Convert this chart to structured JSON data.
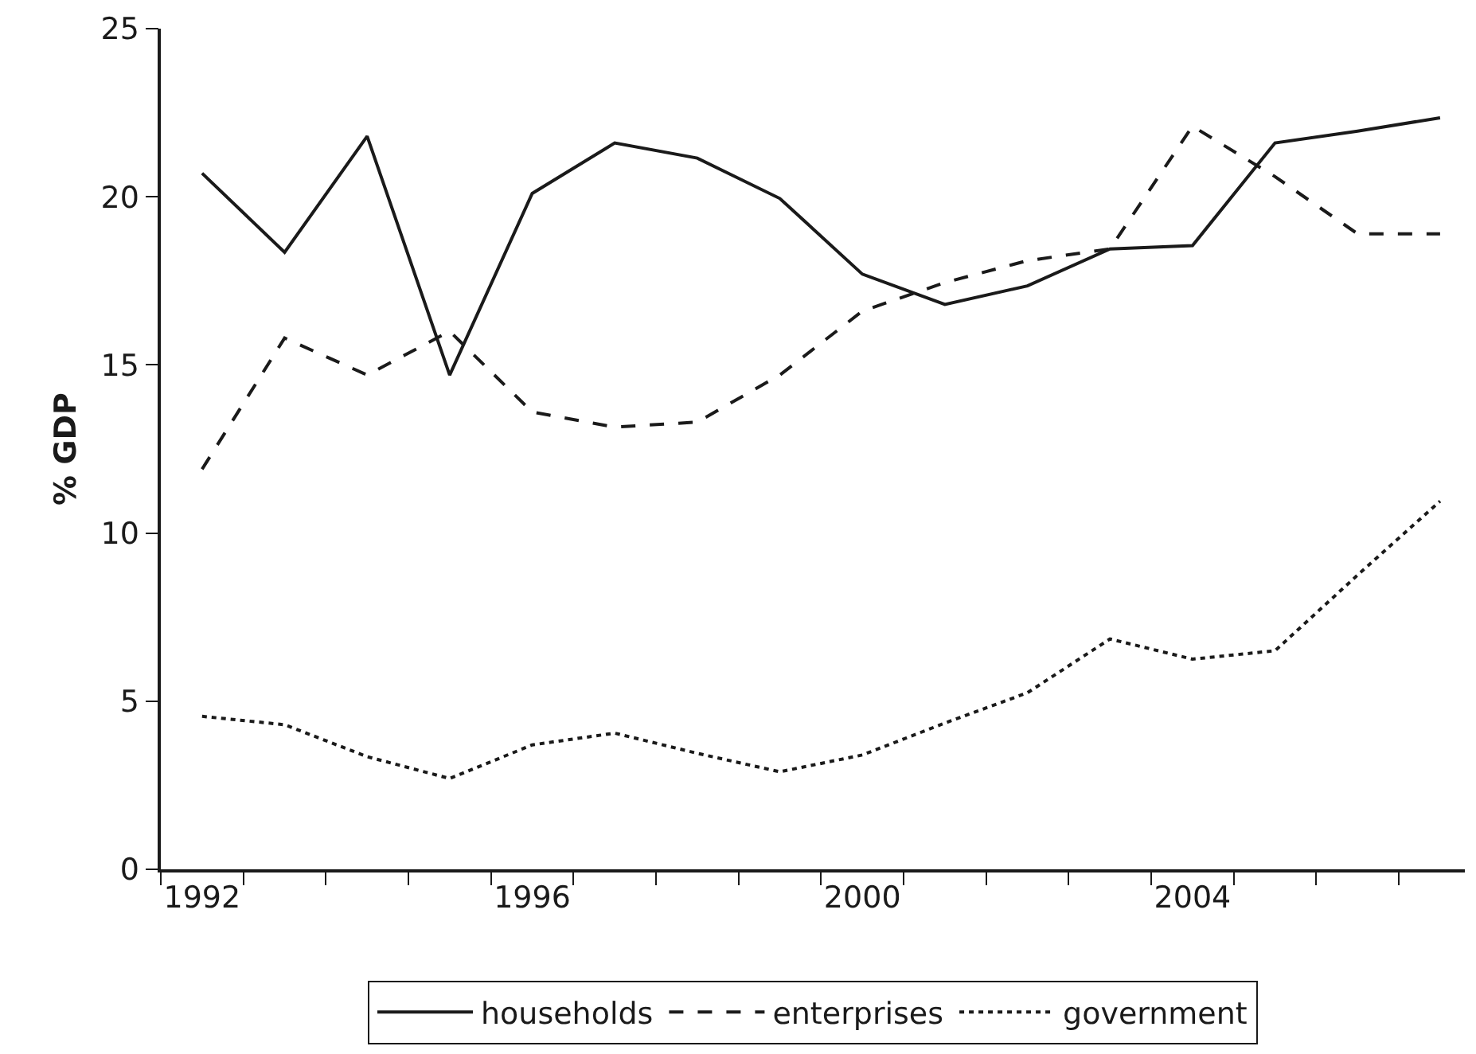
{
  "chart_data": {
    "type": "line",
    "ylabel": "% GDP",
    "x": [
      1992,
      1993,
      1994,
      1995,
      1996,
      1997,
      1998,
      1999,
      2000,
      2001,
      2002,
      2003,
      2004,
      2005,
      2006,
      2007
    ],
    "series": [
      {
        "name": "households",
        "color": "#1a1a1a",
        "line_style": "solid",
        "values": [
          20.7,
          18.35,
          21.8,
          14.7,
          20.1,
          21.6,
          21.15,
          19.95,
          17.7,
          16.8,
          17.35,
          18.45,
          18.55,
          21.6,
          21.95,
          22.35
        ]
      },
      {
        "name": "enterprises",
        "color": "#1a1a1a",
        "line_style": "dashed",
        "values": [
          11.9,
          15.8,
          14.7,
          16.0,
          13.6,
          13.15,
          13.3,
          14.7,
          16.6,
          17.45,
          18.1,
          18.45,
          22.1,
          20.6,
          18.9,
          18.9
        ]
      },
      {
        "name": "government",
        "color": "#1a1a1a",
        "line_style": "dotted",
        "values": [
          4.55,
          4.3,
          3.35,
          2.7,
          3.7,
          4.05,
          3.45,
          2.9,
          3.4,
          4.35,
          5.25,
          6.85,
          6.25,
          6.5,
          8.75,
          10.95
        ]
      }
    ],
    "xlim": [
      1991.5,
      2007.3
    ],
    "xticks": [
      {
        "value": 1991.5,
        "label": null
      },
      {
        "value": 1992.5,
        "label": null
      },
      {
        "value": 1993.5,
        "label": null
      },
      {
        "value": 1994.5,
        "label": null
      },
      {
        "value": 1995.5,
        "label": null
      },
      {
        "value": 1996.5,
        "label": null
      },
      {
        "value": 1997.5,
        "label": null
      },
      {
        "value": 1998.5,
        "label": null
      },
      {
        "value": 1999.5,
        "label": null
      },
      {
        "value": 2000.5,
        "label": null
      },
      {
        "value": 2001.5,
        "label": null
      },
      {
        "value": 2002.5,
        "label": null
      },
      {
        "value": 2003.5,
        "label": null
      },
      {
        "value": 2004.5,
        "label": null
      },
      {
        "value": 2005.5,
        "label": null
      },
      {
        "value": 2006.5,
        "label": null
      },
      1992,
      1996,
      2000,
      2004
    ],
    "ylim": [
      0,
      25
    ],
    "yticks": [
      0,
      5,
      10,
      15,
      20,
      25
    ],
    "grid": false,
    "legend": "bottom",
    "marker": "none"
  }
}
